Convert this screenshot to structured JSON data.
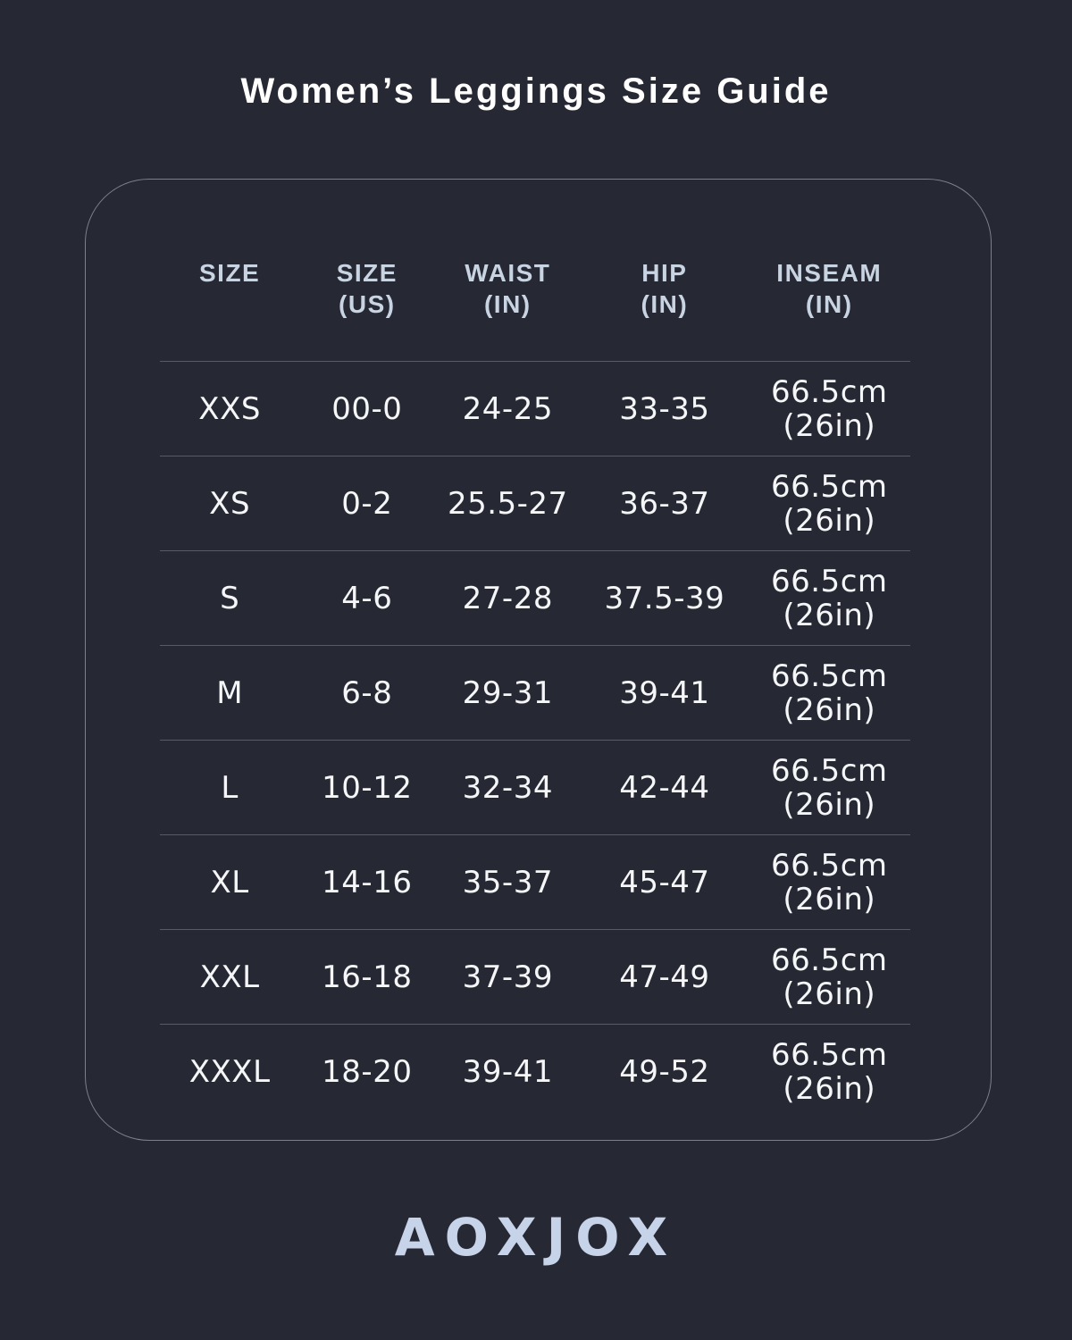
{
  "title": "Women’s Leggings Size Guide",
  "brand": "AOXJOX",
  "colors": {
    "background": "#262834",
    "title_text": "#ffffff",
    "header_text": "#c9d4e3",
    "body_text": "#f5f6f8",
    "divider": "#565b66",
    "card_border": "#7b808a",
    "logo_text": "#c6d3e9"
  },
  "table": {
    "headers": [
      {
        "line1": "SIZE",
        "line2": ""
      },
      {
        "line1": "SIZE",
        "line2": "(US)"
      },
      {
        "line1": "WAIST",
        "line2": "(IN)"
      },
      {
        "line1": "HIP",
        "line2": "(IN)"
      },
      {
        "line1": "INSEAM",
        "line2": "(IN)"
      }
    ],
    "rows": [
      {
        "size": "XXS",
        "size_us": "00-0",
        "waist_in": "24-25",
        "hip_in": "33-35",
        "inseam_cm": "66.5cm",
        "inseam_in": "(26in)"
      },
      {
        "size": "XS",
        "size_us": "0-2",
        "waist_in": "25.5-27",
        "hip_in": "36-37",
        "inseam_cm": "66.5cm",
        "inseam_in": "(26in)"
      },
      {
        "size": "S",
        "size_us": "4-6",
        "waist_in": "27-28",
        "hip_in": "37.5-39",
        "inseam_cm": "66.5cm",
        "inseam_in": "(26in)"
      },
      {
        "size": "M",
        "size_us": "6-8",
        "waist_in": "29-31",
        "hip_in": "39-41",
        "inseam_cm": "66.5cm",
        "inseam_in": "(26in)"
      },
      {
        "size": "L",
        "size_us": "10-12",
        "waist_in": "32-34",
        "hip_in": "42-44",
        "inseam_cm": "66.5cm",
        "inseam_in": "(26in)"
      },
      {
        "size": "XL",
        "size_us": "14-16",
        "waist_in": "35-37",
        "hip_in": "45-47",
        "inseam_cm": "66.5cm",
        "inseam_in": "(26in)"
      },
      {
        "size": "XXL",
        "size_us": "16-18",
        "waist_in": "37-39",
        "hip_in": "47-49",
        "inseam_cm": "66.5cm",
        "inseam_in": "(26in)"
      },
      {
        "size": "XXXL",
        "size_us": "18-20",
        "waist_in": "39-41",
        "hip_in": "49-52",
        "inseam_cm": "66.5cm",
        "inseam_in": "(26in)"
      }
    ]
  }
}
